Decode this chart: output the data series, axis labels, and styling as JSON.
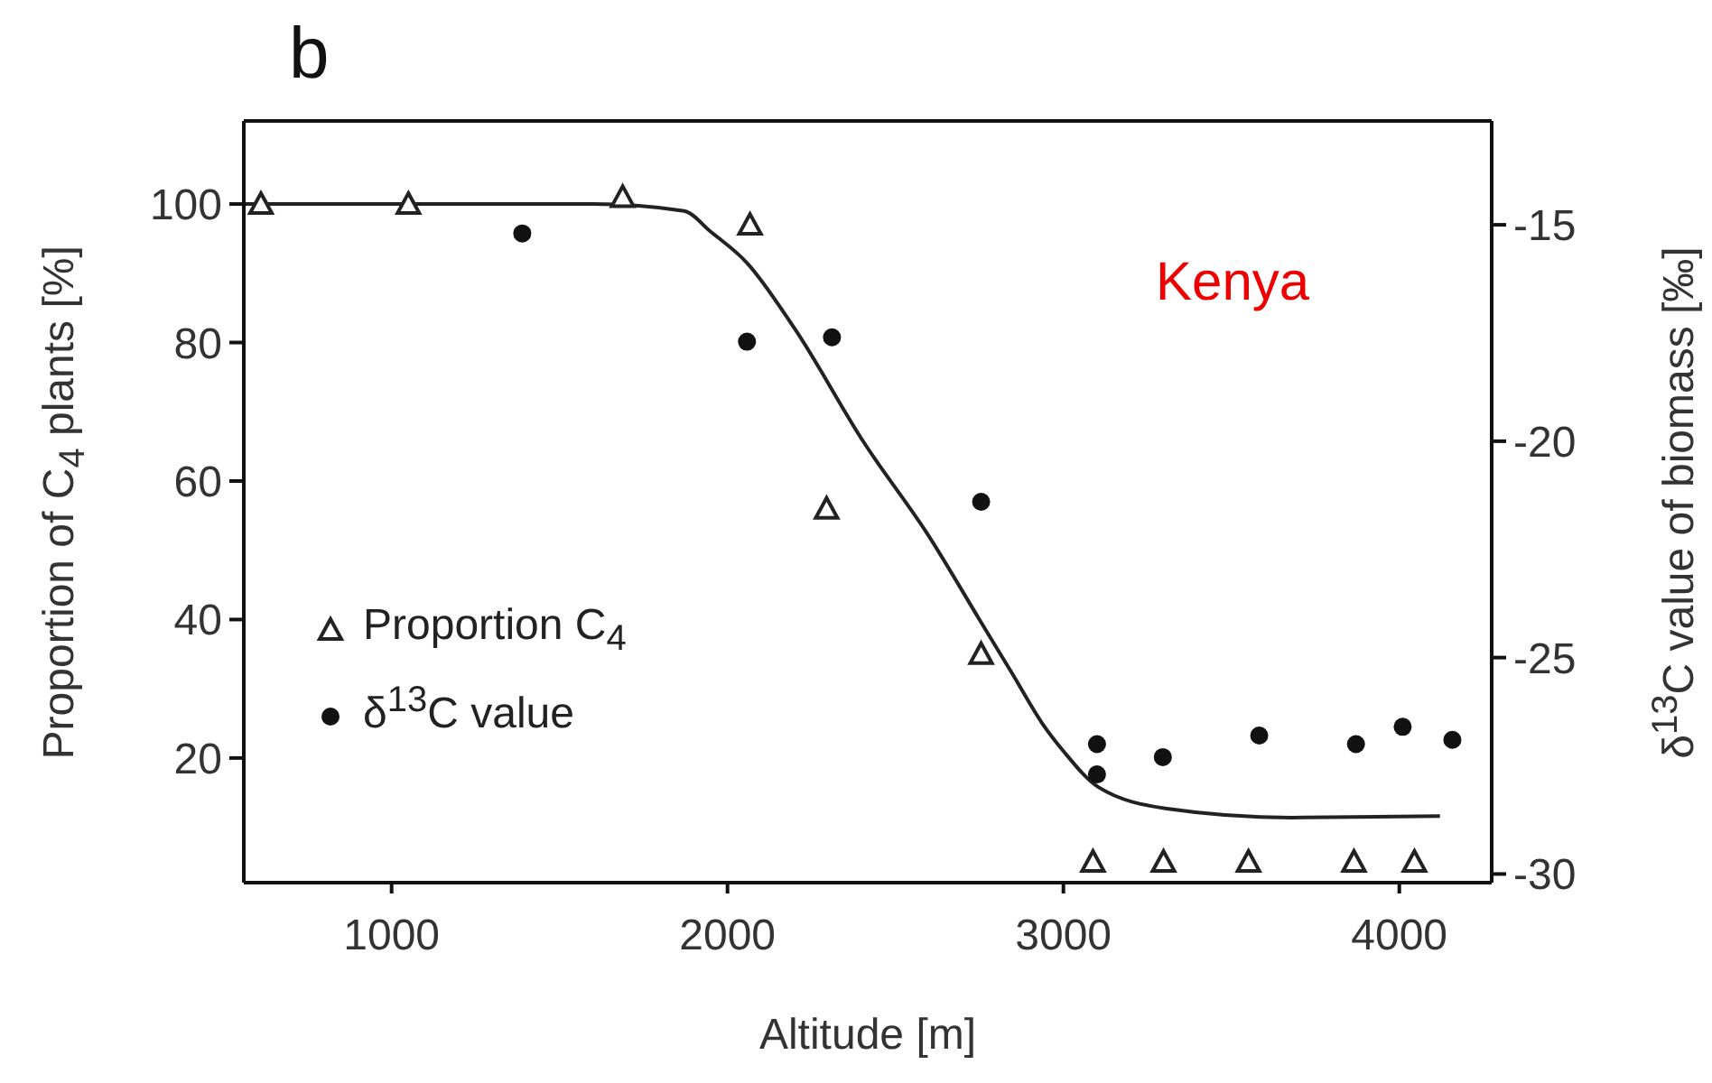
{
  "chart_data": {
    "type": "scatter",
    "title": "b",
    "xlabel": "Altitude [m]",
    "ylabel": "Proportion of C$_{4}$ plants [%]",
    "y2label": "δ$^{13}$C value of biomass [‰]",
    "annotations": [
      "Kenya"
    ],
    "xlim": [
      560,
      4275
    ],
    "xticks": [
      1000,
      2000,
      3000,
      4000
    ],
    "ylim": [
      2,
      112
    ],
    "yticks": [
      20,
      40,
      60,
      80,
      100
    ],
    "y2lim": [
      -30.2,
      -12.6
    ],
    "y2ticks": [
      -15,
      -20,
      -25,
      -30
    ],
    "grid": false,
    "legend": "bottom left",
    "series": [
      {
        "name": "Proportion C$_{4}$",
        "marker": "triangle",
        "color": "#222222",
        "x": [
          611,
          1050,
          1688,
          2067,
          2295,
          2755,
          3088,
          3298,
          3551,
          3865,
          4045
        ],
        "values": [
          100,
          100,
          101,
          97,
          56,
          35,
          5,
          5,
          5,
          5,
          5
        ]
      },
      {
        "name": "δ$^{13}$C value",
        "marker": "circle",
        "axis": "y2",
        "color": "#111111",
        "x": [
          1389,
          2058,
          2311,
          2755,
          3100,
          3100,
          3296,
          3583,
          3871,
          4010,
          4158
        ],
        "values": [
          -15.2,
          -17.7,
          -17.6,
          -21.4,
          -27.0,
          -27.7,
          -27.3,
          -26.8,
          -27.0,
          -26.6,
          -26.9
        ]
      },
      {
        "type": "line",
        "marker": "none",
        "color": "#222222",
        "x": [
          560,
          1400,
          1600,
          1871,
          1950,
          2058,
          2200,
          2407,
          2600,
          2750,
          2850,
          2937,
          3000,
          3104,
          3308,
          3678,
          4121
        ],
        "values": [
          100,
          100,
          100,
          99,
          96,
          91.5,
          82,
          65.5,
          52,
          40,
          32,
          25,
          21,
          15.8,
          12.7,
          11.4,
          11.6
        ]
      }
    ]
  }
}
